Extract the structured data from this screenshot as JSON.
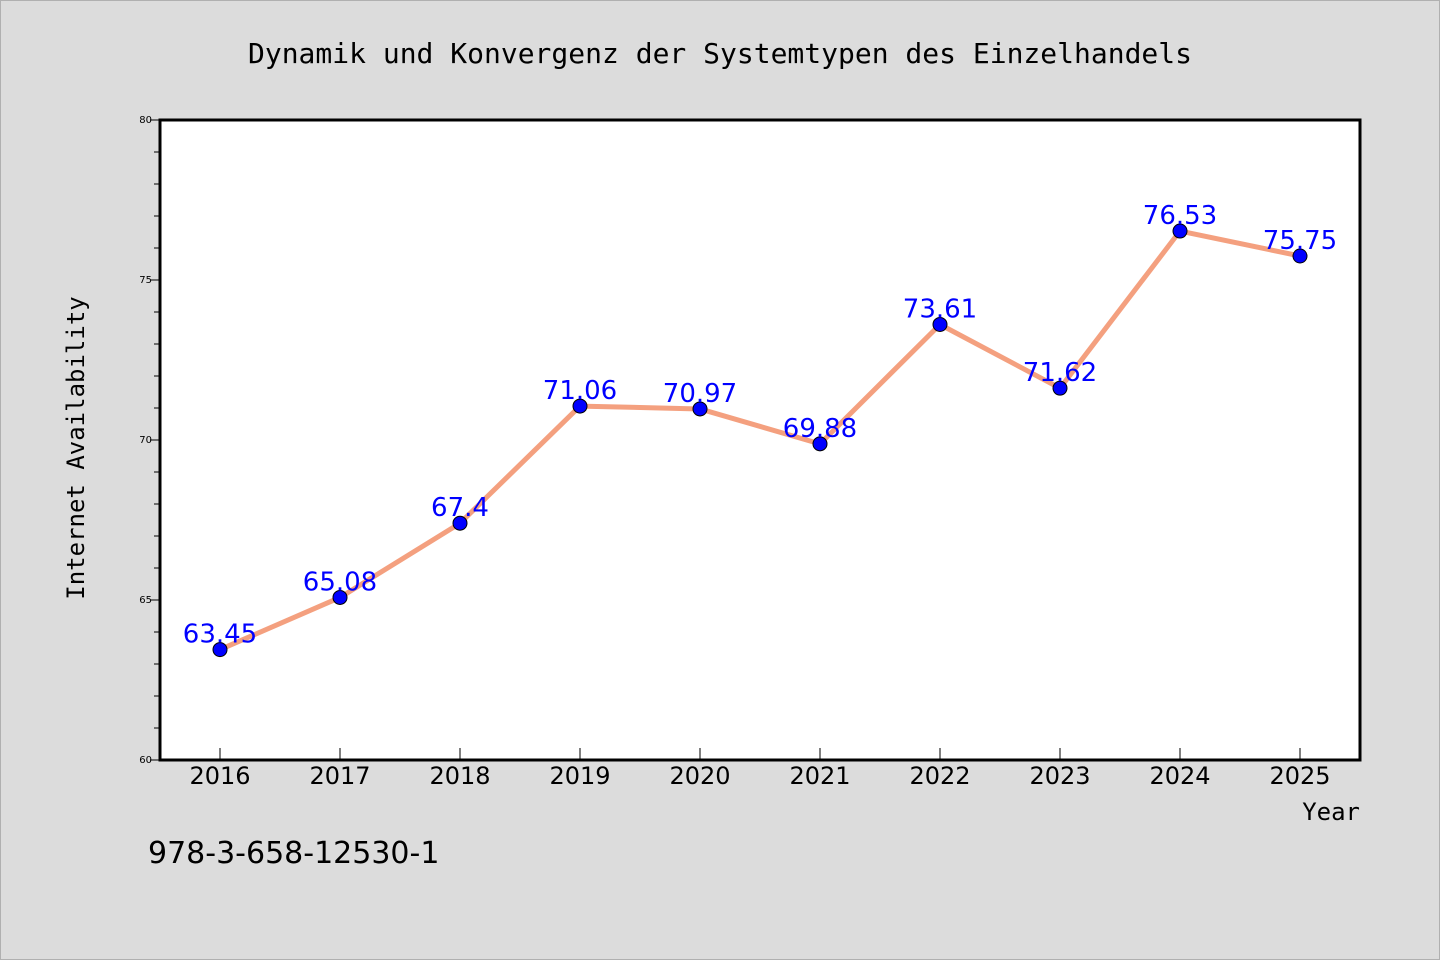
{
  "colors": {
    "background": "#dcdcdc",
    "plot_background": "#ffffff",
    "line": "#f4a07f",
    "marker": "#0000ff",
    "data_label": "#0000ff"
  },
  "footer": {
    "isbn": "978-3-658-12530-1"
  },
  "chart_data": {
    "type": "line",
    "title": "Dynamik und Konvergenz der Systemtypen des Einzelhandels",
    "xlabel": "Year",
    "ylabel": "Internet Availability",
    "categories": [
      "2016",
      "2017",
      "2018",
      "2019",
      "2020",
      "2021",
      "2022",
      "2023",
      "2024",
      "2025"
    ],
    "ylim": [
      60,
      80
    ],
    "y_major_ticks": [
      60,
      65,
      70,
      75,
      80
    ],
    "y_tick_labels": [
      "60",
      "65",
      "70",
      "75",
      "80"
    ],
    "y_minor_step": 1,
    "grid": false,
    "series": [
      {
        "values": [
          63.45,
          65.08,
          67.4,
          71.06,
          70.97,
          69.88,
          73.61,
          71.62,
          76.53,
          75.75
        ],
        "labels": [
          "63.45",
          "65.08",
          "67.4",
          "71.06",
          "70.97",
          "69.88",
          "73.61",
          "71.62",
          "76.53",
          "75.75"
        ]
      }
    ]
  }
}
